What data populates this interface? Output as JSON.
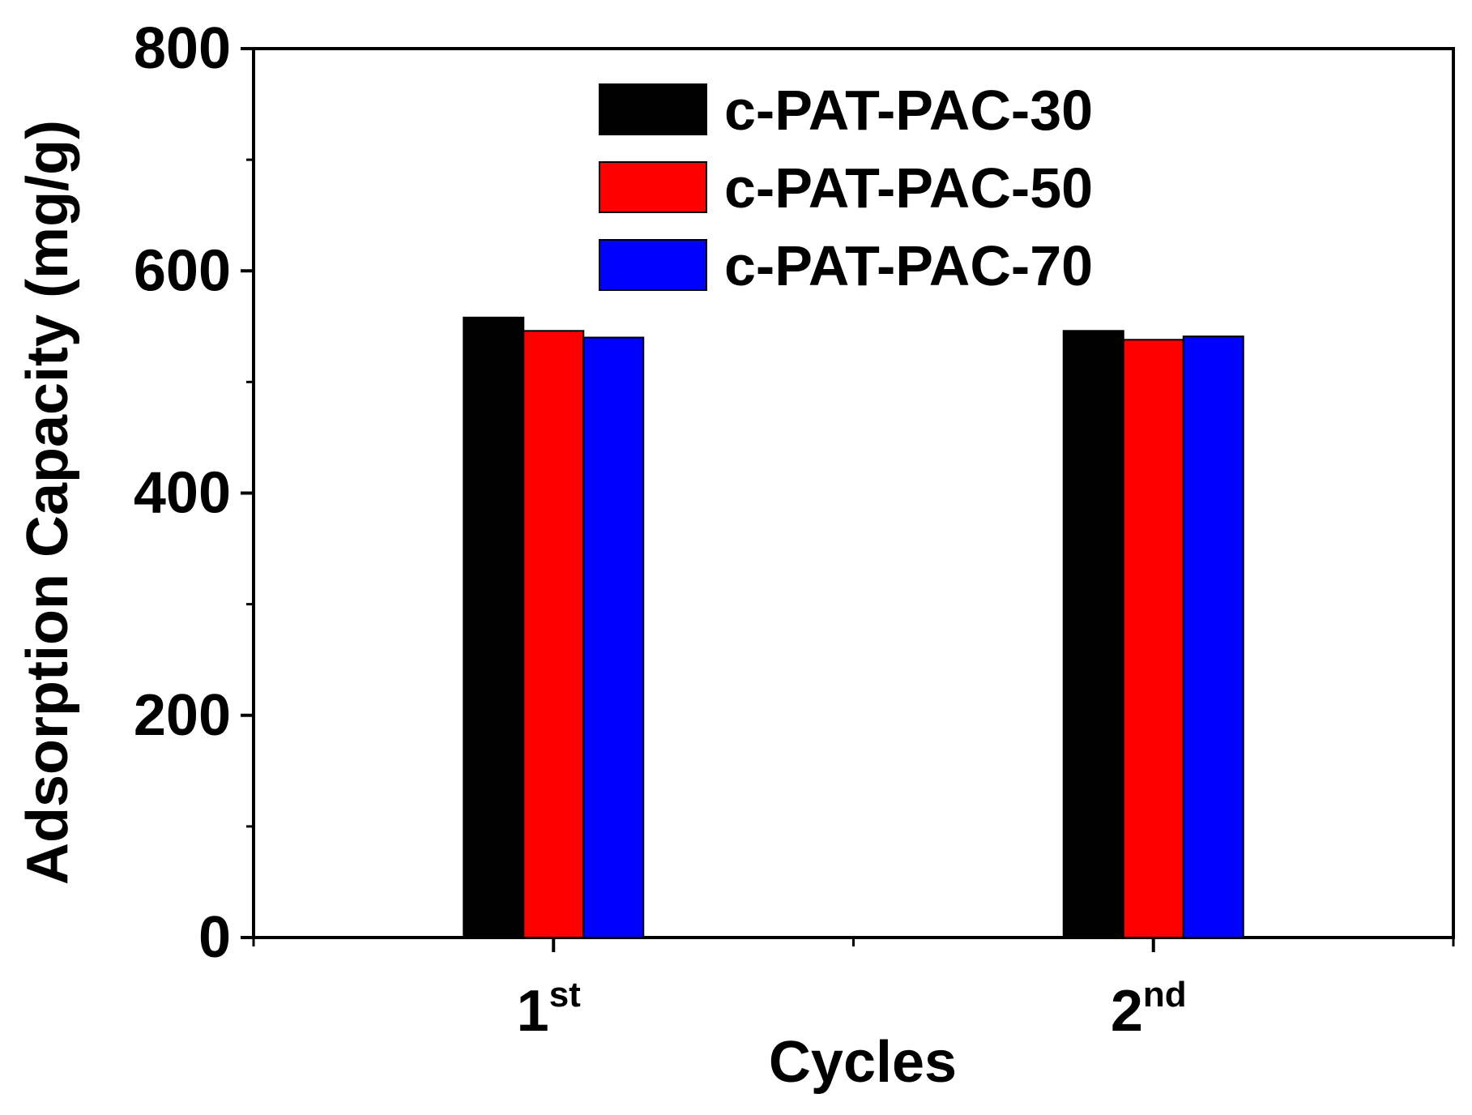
{
  "chart_data": {
    "type": "bar",
    "xlabel": "Cycles",
    "ylabel": "Adsorption Capacity (mg/g)",
    "ylim": [
      0,
      800
    ],
    "yticks": [
      0,
      200,
      400,
      600,
      800
    ],
    "ytick_labels": [
      "0",
      "200",
      "400",
      "600",
      "800"
    ],
    "y_minor_ticks": [
      100,
      300,
      500,
      700
    ],
    "categories": [
      {
        "base": "1",
        "sup": "st"
      },
      {
        "base": "2",
        "sup": "nd"
      }
    ],
    "series": [
      {
        "name": "c-PAT-PAC-30",
        "color": "#000000",
        "values": [
          558,
          546
        ]
      },
      {
        "name": "c-PAT-PAC-50",
        "color": "#ff0000",
        "values": [
          546,
          538
        ]
      },
      {
        "name": "c-PAT-PAC-70",
        "color": "#0000ff",
        "values": [
          540,
          541
        ]
      }
    ],
    "legend_position": "top-center",
    "grid": false
  }
}
